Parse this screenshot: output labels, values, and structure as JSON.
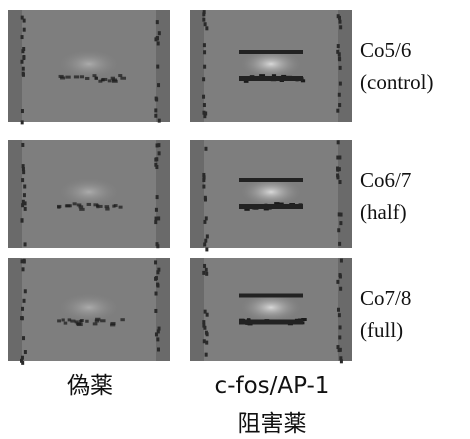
{
  "rows": [
    {
      "lines": [
        "Co5/6",
        "(control)"
      ]
    },
    {
      "lines": [
        "Co6/7",
        "(half)"
      ]
    },
    {
      "lines": [
        "Co7/8",
        "(full)"
      ]
    }
  ],
  "columns": [
    {
      "lines": [
        "偽薬"
      ]
    },
    {
      "lines": [
        "c-fos/AP-1",
        "阻害薬"
      ]
    }
  ]
}
